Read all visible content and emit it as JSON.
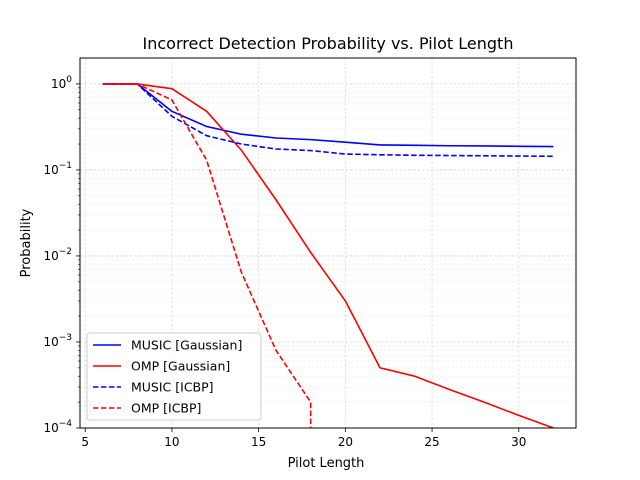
{
  "chart_data": {
    "type": "line",
    "title": "Incorrect Detection Probability vs. Pilot Length",
    "xlabel": "Pilot Length",
    "ylabel": "Probability",
    "xlim": [
      4.7,
      33.3
    ],
    "ylim": [
      0.0001,
      2.0
    ],
    "yscale": "log",
    "x_ticks": [
      5,
      10,
      15,
      20,
      25,
      30
    ],
    "y_ticks": [
      0.0001,
      0.001,
      0.01,
      0.1,
      1
    ],
    "y_tick_labels": [
      {
        "base": "10",
        "exp": "−4"
      },
      {
        "base": "10",
        "exp": "−3"
      },
      {
        "base": "10",
        "exp": "−2"
      },
      {
        "base": "10",
        "exp": "−1"
      },
      {
        "base": "10",
        "exp": "0"
      }
    ],
    "grid": true,
    "legend": "lower-left",
    "series": [
      {
        "name": "MUSIC [Gaussian]",
        "color": "#0000ff",
        "dash": "solid",
        "x": [
          6,
          8,
          10,
          12,
          14,
          16,
          18,
          20,
          22,
          24,
          26,
          28,
          30,
          32
        ],
        "y": [
          1.0,
          1.0,
          0.48,
          0.32,
          0.26,
          0.235,
          0.225,
          0.21,
          0.195,
          0.193,
          0.191,
          0.19,
          0.188,
          0.187
        ]
      },
      {
        "name": "OMP [Gaussian]",
        "color": "#ff0000",
        "dash": "solid",
        "x": [
          6,
          8,
          10,
          12,
          14,
          16,
          18,
          20,
          22,
          24,
          26,
          28,
          30,
          32
        ],
        "y": [
          1.0,
          1.0,
          0.88,
          0.48,
          0.17,
          0.045,
          0.011,
          0.003,
          0.0005,
          0.0004,
          0.00028,
          0.0002,
          0.00014,
          0.0001
        ]
      },
      {
        "name": "MUSIC [ICBP]",
        "color": "#0000ff",
        "dash": "dashed",
        "x": [
          6,
          8,
          10,
          12,
          14,
          16,
          18,
          20,
          22,
          24,
          26,
          28,
          30,
          32
        ],
        "y": [
          1.0,
          1.0,
          0.42,
          0.25,
          0.2,
          0.175,
          0.168,
          0.153,
          0.15,
          0.148,
          0.147,
          0.146,
          0.145,
          0.144
        ]
      },
      {
        "name": "OMP [ICBP]",
        "color": "#ff0000",
        "dash": "dashed",
        "x": [
          6,
          8,
          10,
          12,
          14,
          16,
          18,
          18
        ],
        "y": [
          1.0,
          1.0,
          0.65,
          0.13,
          0.0065,
          0.0008,
          0.0002,
          0.0001
        ]
      }
    ]
  }
}
